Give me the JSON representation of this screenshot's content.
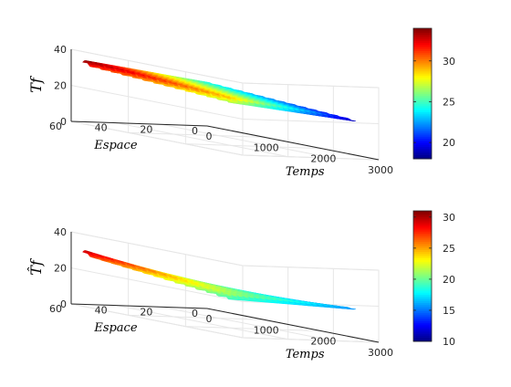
{
  "chart_data": [
    {
      "type": "surface",
      "zlabel": "Tf",
      "xlabel": "Temps",
      "ylabel": "Espace",
      "xlim": [
        0,
        3000
      ],
      "ylim": [
        0,
        60
      ],
      "zlim": [
        0,
        40
      ],
      "xticks": [
        "0",
        "1000",
        "2000",
        "3000"
      ],
      "yticks": [
        "0",
        "20",
        "40",
        "60"
      ],
      "zticks": [
        "0",
        "20",
        "40"
      ],
      "colorbar": {
        "range": [
          18,
          34
        ],
        "ticks": [
          "20",
          "25",
          "30"
        ]
      },
      "surface": {
        "temps_max": 2600,
        "espace_max": 55,
        "ripples": 14,
        "value_at_space_0": [
          24,
          19
        ],
        "value_at_space_max": [
          33,
          28
        ]
      }
    },
    {
      "type": "surface",
      "zlabel": "T̂f",
      "xlabel": "Temps",
      "ylabel": "Espace",
      "xlim": [
        0,
        3000
      ],
      "ylim": [
        0,
        60
      ],
      "zlim": [
        0,
        40
      ],
      "xticks": [
        "0",
        "1000",
        "2000",
        "3000"
      ],
      "yticks": [
        "0",
        "20",
        "40",
        "60"
      ],
      "zticks": [
        "0",
        "20",
        "40"
      ],
      "colorbar": {
        "range": [
          10,
          31
        ],
        "ticks": [
          "10",
          "15",
          "20",
          "25",
          "30"
        ]
      },
      "surface": {
        "temps_max": 2600,
        "espace_max": 55,
        "ripples": 14,
        "value_at_space_0": [
          10,
          16
        ],
        "value_at_space_max": [
          29,
          20
        ]
      }
    }
  ],
  "colors": {
    "colormap": "jet",
    "axis": "#262626",
    "grid": "#e6e6e6"
  }
}
